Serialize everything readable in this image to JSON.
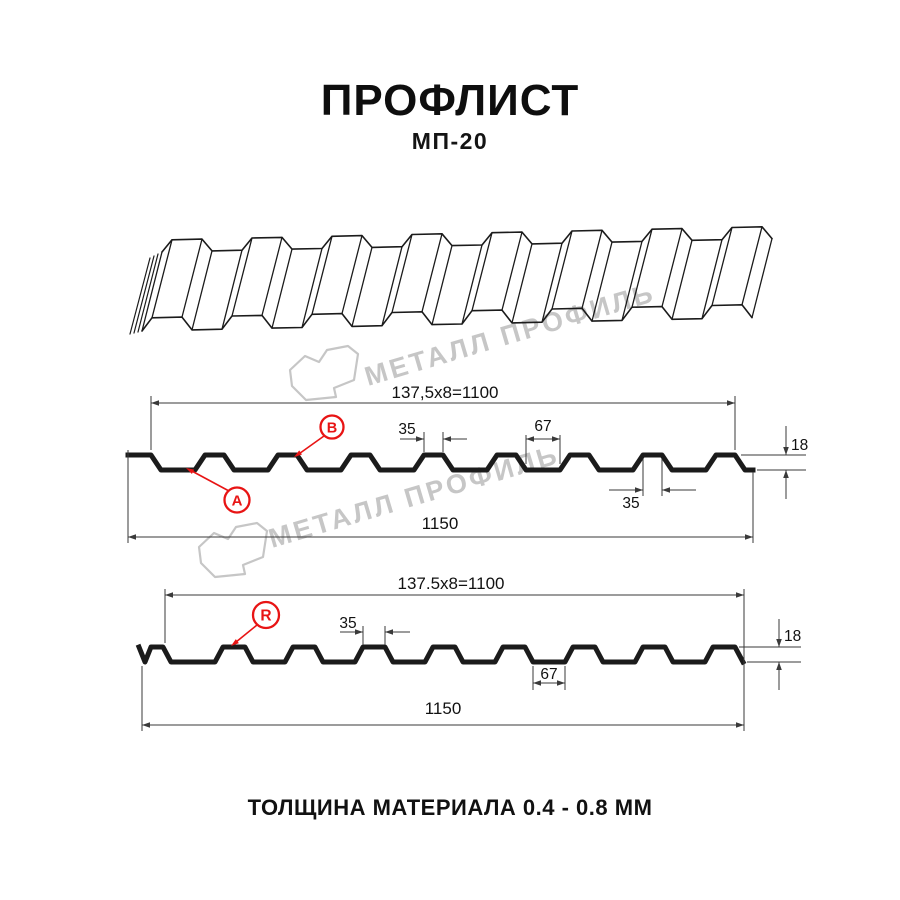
{
  "page": {
    "title": "ПРОФЛИСТ",
    "subtitle": "МП-20",
    "footer_note": "ТОЛЩИНА МАТЕРИАЛА 0.4 - 0.8 ММ"
  },
  "watermark": {
    "brand_text": "МЕТАЛЛ ПРОФИЛЬ"
  },
  "colors": {
    "line": "#1b1b1b",
    "dim": "#3a3a3a",
    "accent_red": "#e81414",
    "watermark_gray": "#c6c6c6"
  },
  "profile_views": {
    "front": {
      "coverage_dim": "137,5x8=1100",
      "overall_dim": "1150",
      "rib_top_dim": "35",
      "valley_dim": "67",
      "height_dim": "18",
      "edge_rib_dim": "35",
      "side_labels": [
        "A",
        "B"
      ]
    },
    "reverse": {
      "coverage_dim": "137.5x8=1100",
      "overall_dim": "1150",
      "rib_top_dim": "35",
      "valley_dim": "67",
      "height_dim": "18",
      "side_labels": [
        "R"
      ]
    }
  }
}
